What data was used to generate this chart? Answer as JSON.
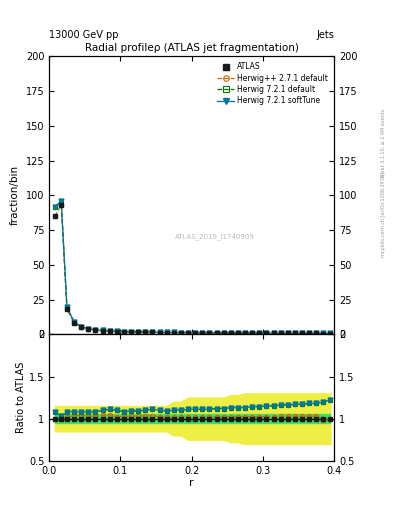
{
  "title": "Radial profileρ (ATLAS jet fragmentation)",
  "top_left_label": "13000 GeV pp",
  "top_right_label": "Jets",
  "xlabel": "r",
  "ylabel_main": "fraction/bin",
  "ylabel_ratio": "Ratio to ATLAS",
  "watermark": "ATLAS_2019_I1740909",
  "right_text_top": "Rivet 3.1.10, ≥ 2.4M events",
  "right_text_bottom": "[arXiv:1306.3436]",
  "right_text_site": "mcplots.cern.ch",
  "ylim_main": [
    0,
    200
  ],
  "ylim_ratio": [
    0.5,
    2.0
  ],
  "xlim": [
    0,
    0.4
  ],
  "r_values": [
    0.008,
    0.017,
    0.025,
    0.035,
    0.045,
    0.055,
    0.065,
    0.075,
    0.085,
    0.095,
    0.105,
    0.115,
    0.125,
    0.135,
    0.145,
    0.155,
    0.165,
    0.175,
    0.185,
    0.195,
    0.205,
    0.215,
    0.225,
    0.235,
    0.245,
    0.255,
    0.265,
    0.275,
    0.285,
    0.295,
    0.305,
    0.315,
    0.325,
    0.335,
    0.345,
    0.355,
    0.365,
    0.375,
    0.385,
    0.395
  ],
  "atlas_data": [
    85,
    93,
    18,
    8.5,
    5.0,
    3.8,
    3.0,
    2.6,
    2.2,
    2.0,
    1.9,
    1.7,
    1.6,
    1.5,
    1.4,
    1.35,
    1.3,
    1.25,
    1.2,
    1.15,
    1.1,
    1.05,
    1.05,
    1.0,
    1.0,
    0.95,
    0.9,
    0.9,
    0.85,
    0.85,
    0.8,
    0.8,
    0.75,
    0.75,
    0.7,
    0.7,
    0.65,
    0.65,
    0.6,
    0.55
  ],
  "atlas_err_frac_green": [
    0.05,
    0.05,
    0.05,
    0.05,
    0.05,
    0.05,
    0.05,
    0.05,
    0.05,
    0.05,
    0.05,
    0.05,
    0.05,
    0.05,
    0.05,
    0.05,
    0.05,
    0.05,
    0.05,
    0.05,
    0.05,
    0.05,
    0.05,
    0.05,
    0.05,
    0.05,
    0.05,
    0.05,
    0.05,
    0.05,
    0.05,
    0.05,
    0.05,
    0.05,
    0.05,
    0.05,
    0.05,
    0.05,
    0.05,
    0.05
  ],
  "atlas_err_frac_yellow": [
    0.15,
    0.15,
    0.15,
    0.15,
    0.15,
    0.15,
    0.15,
    0.15,
    0.15,
    0.15,
    0.15,
    0.15,
    0.15,
    0.15,
    0.15,
    0.15,
    0.15,
    0.2,
    0.2,
    0.25,
    0.25,
    0.25,
    0.25,
    0.25,
    0.25,
    0.28,
    0.28,
    0.3,
    0.3,
    0.3,
    0.3,
    0.3,
    0.3,
    0.3,
    0.3,
    0.3,
    0.3,
    0.3,
    0.3,
    0.3
  ],
  "herwig_pp_ratio": [
    1.0,
    1.0,
    1.02,
    1.035,
    1.04,
    1.026,
    1.033,
    1.038,
    1.045,
    1.025,
    1.026,
    1.029,
    1.031,
    1.033,
    1.036,
    1.022,
    1.015,
    1.016,
    1.017,
    1.017,
    1.018,
    1.019,
    1.019,
    1.02,
    1.02,
    1.021,
    1.022,
    1.022,
    1.024,
    1.024,
    1.025,
    1.025,
    1.027,
    1.027,
    1.029,
    1.029,
    1.031,
    1.031,
    0.99,
    1.0
  ],
  "herwig721_default_ratio": [
    1.08,
    1.03,
    1.08,
    1.08,
    1.08,
    1.08,
    1.08,
    1.1,
    1.11,
    1.1,
    1.08,
    1.09,
    1.09,
    1.1,
    1.11,
    1.1,
    1.09,
    1.1,
    1.1,
    1.11,
    1.11,
    1.11,
    1.11,
    1.12,
    1.12,
    1.13,
    1.13,
    1.13,
    1.14,
    1.14,
    1.15,
    1.15,
    1.16,
    1.16,
    1.17,
    1.17,
    1.18,
    1.18,
    1.2,
    1.22
  ],
  "herwig721_softtune_ratio": [
    1.08,
    1.03,
    1.08,
    1.08,
    1.08,
    1.08,
    1.08,
    1.1,
    1.11,
    1.1,
    1.08,
    1.09,
    1.09,
    1.1,
    1.11,
    1.1,
    1.09,
    1.1,
    1.1,
    1.11,
    1.11,
    1.11,
    1.11,
    1.12,
    1.12,
    1.13,
    1.13,
    1.13,
    1.14,
    1.14,
    1.15,
    1.15,
    1.16,
    1.16,
    1.17,
    1.17,
    1.18,
    1.18,
    1.2,
    1.22
  ],
  "color_atlas": "#1a1a1a",
  "color_herwig_pp": "#cc6600",
  "color_herwig721_default": "#007700",
  "color_herwig721_softtune": "#007799",
  "color_band_green": "#44dd66",
  "color_band_yellow": "#eeee44",
  "bg_color": "#ffffff"
}
